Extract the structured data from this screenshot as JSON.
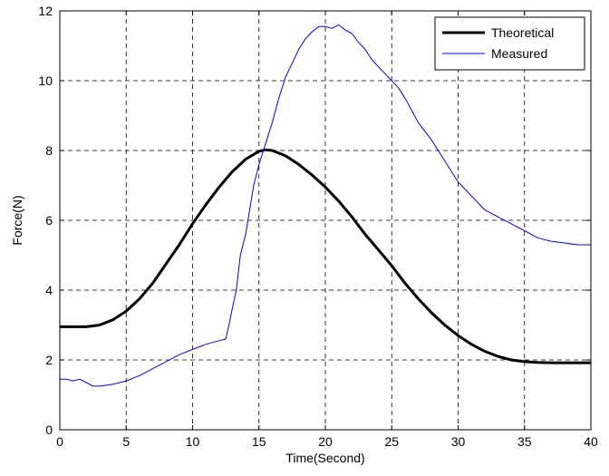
{
  "chart_data": {
    "type": "line",
    "title": "",
    "xlabel": "Time(Second)",
    "ylabel": "Force(N)",
    "xlim": [
      0,
      40
    ],
    "ylim": [
      0,
      12
    ],
    "xticks": [
      "0",
      "5",
      "10",
      "15",
      "20",
      "25",
      "30",
      "35",
      "40"
    ],
    "yticks": [
      "0",
      "2",
      "4",
      "6",
      "8",
      "10",
      "12"
    ],
    "grid": true,
    "legend_position": "top-right",
    "series": [
      {
        "name": "Theoretical",
        "color": "#000000",
        "style": "thick",
        "x": [
          0,
          2,
          3,
          4,
          5,
          6,
          7,
          8,
          9,
          10,
          11,
          12,
          13,
          14,
          15,
          15.5,
          16,
          17,
          18,
          19,
          20,
          21,
          22,
          23,
          24,
          25,
          26,
          27,
          28,
          29,
          30,
          31,
          32,
          33,
          34,
          35,
          36,
          37,
          38,
          39,
          40
        ],
        "y": [
          2.95,
          2.95,
          3.0,
          3.15,
          3.4,
          3.75,
          4.2,
          4.75,
          5.3,
          5.9,
          6.45,
          6.95,
          7.4,
          7.75,
          7.98,
          8.02,
          8.0,
          7.85,
          7.6,
          7.3,
          6.95,
          6.55,
          6.1,
          5.6,
          5.15,
          4.7,
          4.2,
          3.75,
          3.35,
          3.0,
          2.7,
          2.45,
          2.25,
          2.1,
          2.0,
          1.95,
          1.93,
          1.92,
          1.92,
          1.92,
          1.92
        ]
      },
      {
        "name": "Measured",
        "color": "#0000ff",
        "style": "thin",
        "x": [
          0,
          0.5,
          1,
          1.5,
          2,
          2.5,
          3,
          4,
          5,
          6,
          7,
          8,
          9,
          10,
          11,
          12,
          12.5,
          12.8,
          13,
          13.3,
          13.6,
          14,
          14.3,
          14.6,
          15,
          15.5,
          16,
          16.5,
          17,
          17.5,
          18,
          18.5,
          19,
          19.5,
          20,
          20.5,
          21,
          21.5,
          22,
          22.5,
          23,
          23.5,
          24,
          24.5,
          25,
          25.5,
          26,
          27,
          28,
          29,
          30,
          31,
          32,
          33,
          34,
          35,
          36,
          37,
          38,
          39,
          40
        ],
        "y": [
          1.45,
          1.45,
          1.4,
          1.45,
          1.35,
          1.25,
          1.25,
          1.3,
          1.4,
          1.55,
          1.75,
          1.95,
          2.15,
          2.3,
          2.45,
          2.55,
          2.6,
          3.1,
          3.5,
          4.0,
          5.0,
          5.6,
          6.3,
          7.0,
          7.6,
          8.2,
          8.8,
          9.5,
          10.1,
          10.5,
          10.9,
          11.2,
          11.4,
          11.55,
          11.55,
          11.5,
          11.6,
          11.45,
          11.35,
          11.1,
          10.9,
          10.6,
          10.4,
          10.2,
          10.0,
          9.8,
          9.5,
          8.8,
          8.3,
          7.7,
          7.1,
          6.7,
          6.3,
          6.1,
          5.9,
          5.7,
          5.5,
          5.4,
          5.35,
          5.3,
          5.3
        ]
      }
    ]
  }
}
